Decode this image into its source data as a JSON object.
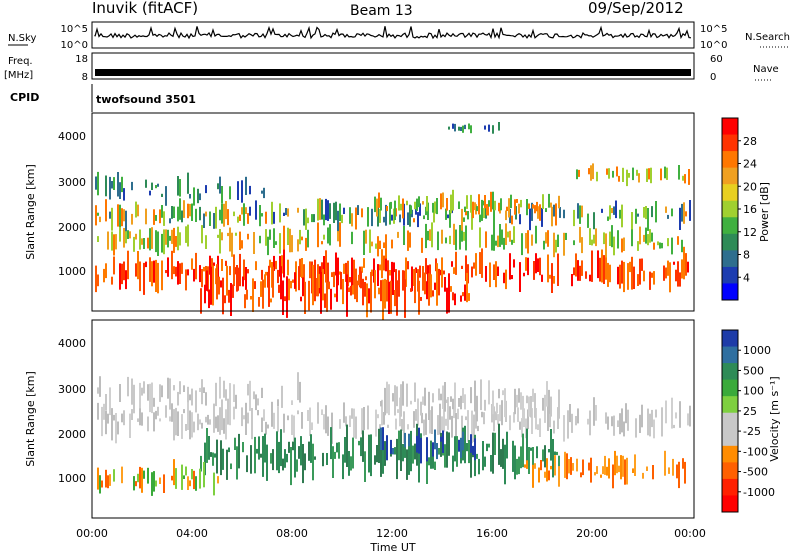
{
  "header": {
    "station": "Inuvik (fitACF)",
    "beam": "Beam 13",
    "date": "09/Sep/2012"
  },
  "noise_panel": {
    "left_label": "N.Sky",
    "right_label": "N.Search",
    "y_ticks": [
      "10^5",
      "10^0"
    ]
  },
  "freq_panel": {
    "left_label_line1": "Freq.",
    "left_label_line2": "[MHz]",
    "left_ticks": [
      "18",
      "8"
    ],
    "right_label": "Nave",
    "right_ticks": [
      "60",
      "0"
    ]
  },
  "cpid_panel": {
    "label": "CPID",
    "program": "twofsound 3501"
  },
  "power_panel": {
    "ylabel": "Slant Range [km]",
    "y_ticks": [
      "1000",
      "2000",
      "3000",
      "4000"
    ],
    "colorbar_label": "Power [dB]",
    "colorbar_ticks": [
      "28",
      "24",
      "20",
      "16",
      "12",
      "8",
      "4"
    ],
    "colorbar_colors": [
      "#ff0000",
      "#ff3300",
      "#ff7700",
      "#f0a020",
      "#e8d020",
      "#a0d030",
      "#40b040",
      "#2e8b57",
      "#2e6e8e",
      "#1c3cb0",
      "#0000ff"
    ]
  },
  "velocity_panel": {
    "ylabel": "Slant Range [km]",
    "y_ticks": [
      "1000",
      "2000",
      "3000",
      "4000"
    ],
    "colorbar_label": "Velocity [m s⁻¹]",
    "colorbar_ticks": [
      "1000",
      "500",
      "100",
      "25",
      "-25",
      "-100",
      "-500",
      "-1000"
    ],
    "colorbar_colors": [
      "#1e3ca8",
      "#2f6fa0",
      "#2e8b57",
      "#3aaa3a",
      "#7ed040",
      "#c8c8c8",
      "#c8c8c8",
      "#ff8c00",
      "#ff6000",
      "#ff2000",
      "#ff0000"
    ]
  },
  "x_axis": {
    "ticks": [
      "00:00",
      "04:00",
      "08:00",
      "12:00",
      "16:00",
      "20:00",
      "00:00"
    ],
    "label": "Time UT"
  }
}
